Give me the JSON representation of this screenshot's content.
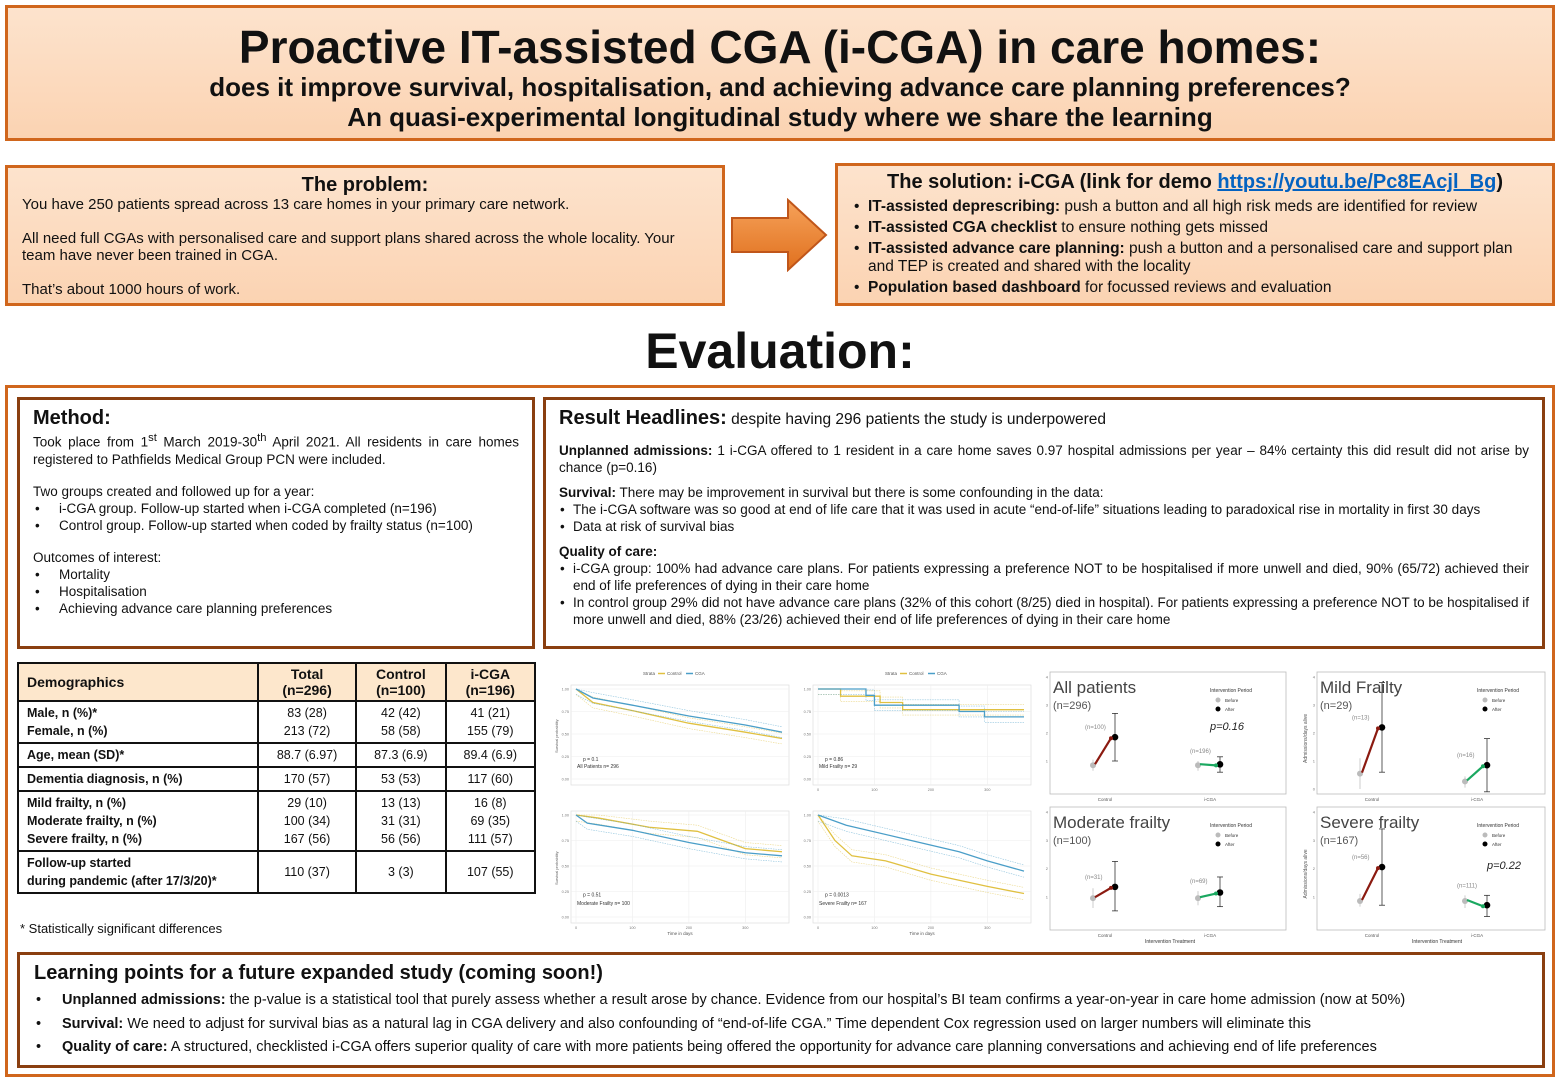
{
  "header": {
    "title": "Proactive IT-assisted CGA (i-CGA) in care homes:",
    "subtitle1": "does it improve survival, hospitalisation, and achieving advance care planning preferences?",
    "subtitle2": "An quasi-experimental longitudinal study where we share the learning"
  },
  "problem": {
    "title": "The problem:",
    "p1": "You have 250 patients spread across 13 care homes in your primary care network.",
    "p2": "All need full CGAs with personalised care and support plans shared across the whole locality. Your team have never been trained in CGA.",
    "p3": "That’s about 1000 hours of work."
  },
  "solution": {
    "title": "The solution: i-CGA (link for demo ",
    "link": "https://youtu.be/Pc8EAcjl_Bg",
    "title_end": ")",
    "items": [
      {
        "bold": "IT-assisted deprescribing:",
        "text": " push a button and all high risk meds are identified for review"
      },
      {
        "bold": "IT-assisted CGA checklist",
        "text": " to ensure nothing gets missed"
      },
      {
        "bold": "IT-assisted advance care planning:",
        "text": " push a button and a personalised care and support plan and TEP is created and shared with the locality"
      },
      {
        "bold": "Population based dashboard",
        "text": " for focussed reviews and evaluation"
      }
    ]
  },
  "evaluation_title": "Evaluation:",
  "method": {
    "title": "Method:",
    "p1a": "Took place from 1",
    "p1sup1": "st",
    "p1b": " March 2019-30",
    "p1sup2": "th",
    "p1c": " April 2021. All residents in care homes registered to Pathfields Medical Group PCN were included.",
    "p2": "Two groups created and followed up for a year:",
    "groups": [
      "i-CGA group. Follow-up started when i-CGA completed (n=196)",
      "Control group. Follow-up started when coded by frailty status (n=100)"
    ],
    "p3": "Outcomes of interest:",
    "outcomes": [
      "Mortality",
      "Hospitalisation",
      "Achieving advance care planning preferences"
    ]
  },
  "results": {
    "title": "Result Headlines:",
    "subtitle": " despite having 296 patients the study is underpowered",
    "admissions_label": "Unplanned admissions:",
    "admissions_text": " 1 i-CGA offered to 1 resident in a care home saves 0.97 hospital admissions per year – 84% certainty this did result did not arise by chance (p=0.16)",
    "survival_label": "Survival:",
    "survival_text": " There may be improvement in survival but there is some confounding in the data:",
    "survival_items": [
      "The i-CGA software was so good at end of life care that it was used in acute “end-of-life” situations leading to paradoxical rise in mortality in first 30 days",
      "Data at risk of survival bias"
    ],
    "quality_label": "Quality of care:",
    "quality_items": [
      "i-CGA group: 100% had advance care plans. For patients expressing a preference NOT to be hospitalised if more unwell and died, 90% (65/72) achieved their end of life preferences of dying in their care home",
      "In control group 29% did not have advance care plans (32% of this cohort (8/25) died in hospital). For patients expressing a preference NOT to be hospitalised if more unwell and died, 88% (23/26) achieved their end of life preferences of dying in their care home"
    ]
  },
  "demographics": {
    "headers": [
      "Demographics",
      "Total",
      "(n=296)",
      "Control",
      "(n=100)",
      "i-CGA",
      "(n=196)"
    ],
    "rows": [
      {
        "labels": [
          "Male, n (%)*",
          "Female, n (%)"
        ],
        "total": [
          "83 (28)",
          "213 (72)"
        ],
        "control": [
          "42 (42)",
          "58 (58)"
        ],
        "icga": [
          "41 (21)",
          "155 (79)"
        ]
      },
      {
        "labels": [
          "Age, mean (SD)*"
        ],
        "total": [
          "88.7 (6.97)"
        ],
        "control": [
          "87.3 (6.9)"
        ],
        "icga": [
          "89.4 (6.9)"
        ]
      },
      {
        "labels": [
          "Dementia diagnosis, n (%)"
        ],
        "total": [
          "170 (57)"
        ],
        "control": [
          "53 (53)"
        ],
        "icga": [
          "117 (60)"
        ]
      },
      {
        "labels": [
          "Mild frailty, n (%)",
          "Moderate frailty, n (%)",
          "Severe frailty, n (%)"
        ],
        "total": [
          "29 (10)",
          "100 (34)",
          "167 (56)"
        ],
        "control": [
          "13 (13)",
          "31 (31)",
          "56 (56)"
        ],
        "icga": [
          "16 (8)",
          "69 (35)",
          "111 (57)"
        ]
      },
      {
        "labels": [
          "Follow-up started",
          "during pandemic (after 17/3/20)*"
        ],
        "total": [
          "110 (37)"
        ],
        "control": [
          "3 (3)"
        ],
        "icga": [
          "107 (55)"
        ]
      }
    ],
    "footnote": "* Statistically significant differences"
  },
  "colors": {
    "border_orange": "#d0661c",
    "border_brown": "#8a3f10",
    "control": "#e0c040",
    "cga": "#4a9ec8",
    "worse": "#8b1a10",
    "better": "#1aa860"
  },
  "chart_data": [
    {
      "type": "line",
      "kind": "kaplan-meier",
      "legend": {
        "title": "Strata",
        "entries": [
          "Control",
          "CGA"
        ],
        "placement": "top"
      },
      "ylabel": "Survival probability",
      "xlabel": "",
      "ylim": [
        0,
        1
      ],
      "xlim": [
        0,
        365
      ],
      "yticks": [
        "0.00",
        "0.25",
        "0.50",
        "0.75",
        "1.00"
      ],
      "xticks": [],
      "p": "p = 0.1",
      "label": "All Patients n= 296",
      "series": [
        {
          "name": "Control",
          "points": [
            [
              0,
              1
            ],
            [
              30,
              0.85
            ],
            [
              100,
              0.76
            ],
            [
              200,
              0.62
            ],
            [
              300,
              0.52
            ],
            [
              365,
              0.45
            ]
          ]
        },
        {
          "name": "CGA",
          "points": [
            [
              0,
              1
            ],
            [
              30,
              0.9
            ],
            [
              100,
              0.82
            ],
            [
              200,
              0.7
            ],
            [
              300,
              0.6
            ],
            [
              365,
              0.52
            ]
          ]
        }
      ]
    },
    {
      "type": "line",
      "kind": "kaplan-meier",
      "legend": {
        "title": "Strata",
        "entries": [
          "Control",
          "CGA"
        ],
        "placement": "top"
      },
      "ylabel": "",
      "xlabel": "",
      "ylim": [
        0,
        1
      ],
      "xlim": [
        0,
        365
      ],
      "yticks": [
        "0.00",
        "0.25",
        "0.50",
        "0.75",
        "1.00"
      ],
      "xticks": [
        "0",
        "100",
        "200",
        "300"
      ],
      "p": "p = 0.86",
      "label": "Mild Frailty n= 29",
      "series": [
        {
          "name": "Control",
          "points": [
            [
              0,
              1
            ],
            [
              40,
              1
            ],
            [
              40,
              0.92
            ],
            [
              110,
              0.92
            ],
            [
              110,
              0.85
            ],
            [
              150,
              0.85
            ],
            [
              150,
              0.77
            ],
            [
              365,
              0.77
            ]
          ]
        },
        {
          "name": "CGA",
          "points": [
            [
              0,
              1
            ],
            [
              85,
              1
            ],
            [
              85,
              0.93
            ],
            [
              100,
              0.93
            ],
            [
              100,
              0.82
            ],
            [
              250,
              0.82
            ],
            [
              250,
              0.75
            ],
            [
              295,
              0.75
            ],
            [
              295,
              0.69
            ],
            [
              365,
              0.69
            ]
          ]
        }
      ]
    },
    {
      "type": "line",
      "kind": "kaplan-meier",
      "legend": null,
      "ylabel": "Survival probability",
      "xlabel": "Time in days",
      "ylim": [
        0,
        1
      ],
      "xlim": [
        0,
        365
      ],
      "yticks": [
        "0.00",
        "0.25",
        "0.50",
        "0.75",
        "1.00"
      ],
      "xticks": [
        "0",
        "100",
        "200",
        "300"
      ],
      "p": "p = 0.51",
      "label": "Moderate Frailty n= 100",
      "series": [
        {
          "name": "Control",
          "points": [
            [
              0,
              1
            ],
            [
              40,
              0.97
            ],
            [
              130,
              0.88
            ],
            [
              215,
              0.84
            ],
            [
              260,
              0.75
            ],
            [
              300,
              0.67
            ],
            [
              365,
              0.64
            ]
          ]
        },
        {
          "name": "CGA",
          "points": [
            [
              0,
              1
            ],
            [
              20,
              0.92
            ],
            [
              100,
              0.85
            ],
            [
              200,
              0.73
            ],
            [
              300,
              0.63
            ],
            [
              365,
              0.6
            ]
          ]
        }
      ]
    },
    {
      "type": "line",
      "kind": "kaplan-meier",
      "legend": null,
      "ylabel": "",
      "xlabel": "Time in days",
      "ylim": [
        0,
        1
      ],
      "xlim": [
        0,
        365
      ],
      "yticks": [
        "0.00",
        "0.25",
        "0.50",
        "0.75",
        "1.00"
      ],
      "xticks": [
        "0",
        "100",
        "200",
        "300"
      ],
      "p": "p = 0.0013",
      "label": "Severe Frailty n= 167",
      "series": [
        {
          "name": "Control",
          "points": [
            [
              0,
              1
            ],
            [
              30,
              0.75
            ],
            [
              60,
              0.6
            ],
            [
              120,
              0.55
            ],
            [
              200,
              0.42
            ],
            [
              300,
              0.3
            ],
            [
              365,
              0.23
            ]
          ]
        },
        {
          "name": "CGA",
          "points": [
            [
              0,
              1
            ],
            [
              50,
              0.9
            ],
            [
              150,
              0.77
            ],
            [
              250,
              0.64
            ],
            [
              300,
              0.55
            ],
            [
              365,
              0.45
            ]
          ]
        }
      ]
    },
    {
      "type": "scatter",
      "kind": "before-after",
      "title": "All patients",
      "n": "(n=296)",
      "legend": {
        "title": "Intervention Period",
        "entries": [
          "Before",
          "After"
        ],
        "placement": "top-right"
      },
      "ylabel": "Admissions/days alive",
      "xlabel": "",
      "ylim": [
        0,
        4
      ],
      "yticks": [
        "1",
        "2",
        "3",
        "4"
      ],
      "categories": [
        "Control",
        "i-CGA"
      ],
      "p": "p=0.16",
      "groups": [
        {
          "label": "(n=100)",
          "before": {
            "y": 0.85,
            "ci": [
              0.65,
              1.05
            ]
          },
          "after": {
            "y": 1.85,
            "ci": [
              1.0,
              2.7
            ]
          }
        },
        {
          "label": "(n=196)",
          "before": {
            "y": 0.85,
            "ci": [
              0.65,
              1.0
            ]
          },
          "after": {
            "y": 0.88,
            "ci": [
              0.6,
              1.15
            ]
          }
        }
      ]
    },
    {
      "type": "scatter",
      "kind": "before-after",
      "title": "Mild Frailty",
      "n": "(n=29)",
      "legend": {
        "title": "Intervention Period",
        "entries": [
          "Before",
          "After"
        ],
        "placement": "top-right"
      },
      "ylabel": "Admissions/days alive",
      "xlabel": "",
      "ylim": [
        0,
        4
      ],
      "yticks": [
        "0",
        "1",
        "2",
        "3",
        "4"
      ],
      "categories": [
        "Control",
        "i-CGA"
      ],
      "p": "",
      "groups": [
        {
          "label": "(n=13)",
          "before": {
            "y": 0.55,
            "ci": [
              0,
              1.1
            ]
          },
          "after": {
            "y": 2.2,
            "ci": [
              0.6,
              3.8
            ]
          }
        },
        {
          "label": "(n=16)",
          "before": {
            "y": 0.27,
            "ci": [
              0.05,
              0.45
            ]
          },
          "after": {
            "y": 0.85,
            "ci": [
              -0.1,
              1.8
            ]
          }
        }
      ]
    },
    {
      "type": "scatter",
      "kind": "before-after",
      "title": "Moderate frailty",
      "n": "(n=100)",
      "legend": {
        "title": "Intervention Period",
        "entries": [
          "Before",
          "After"
        ],
        "placement": "top-right"
      },
      "ylabel": "Admissions/days alive",
      "xlabel": "Intervention Treatment",
      "ylim": [
        0,
        4
      ],
      "yticks": [
        "1",
        "2",
        "3",
        "4"
      ],
      "categories": [
        "Control",
        "i-CGA"
      ],
      "p": "",
      "groups": [
        {
          "label": "(n=31)",
          "before": {
            "y": 0.95,
            "ci": [
              0.6,
              1.3
            ]
          },
          "after": {
            "y": 1.35,
            "ci": [
              0.5,
              2.25
            ]
          }
        },
        {
          "label": "(n=69)",
          "before": {
            "y": 0.95,
            "ci": [
              0.7,
              1.2
            ]
          },
          "after": {
            "y": 1.15,
            "ci": [
              0.65,
              1.7
            ]
          }
        }
      ]
    },
    {
      "type": "scatter",
      "kind": "before-after",
      "title": "Severe frailty",
      "n": "(n=167)",
      "legend": {
        "title": "Intervention Period",
        "entries": [
          "Before",
          "After"
        ],
        "placement": "top-right"
      },
      "ylabel": "Admissions/days alive",
      "xlabel": "Intervention Treatment",
      "ylim": [
        0,
        4
      ],
      "yticks": [
        "1",
        "2",
        "3",
        "4"
      ],
      "categories": [
        "Control",
        "i-CGA"
      ],
      "p": "p=0.22",
      "groups": [
        {
          "label": "(n=56)",
          "before": {
            "y": 0.85,
            "ci": [
              0.65,
              1.1
            ]
          },
          "after": {
            "y": 2.05,
            "ci": [
              0.7,
              3.4
            ]
          }
        },
        {
          "label": "(n=111)",
          "before": {
            "y": 0.85,
            "ci": [
              0.6,
              1.05
            ]
          },
          "after": {
            "y": 0.7,
            "ci": [
              0.3,
              1.05
            ]
          }
        }
      ]
    }
  ],
  "learning": {
    "title": "Learning points for a future expanded study (coming soon!)",
    "items": [
      {
        "bold": "Unplanned admissions:",
        "text": " the p-value is a statistical tool that purely assess whether a result arose by chance. Evidence from our hospital’s BI team confirms a year-on-year in care home admission (now at 50%)"
      },
      {
        "bold": "Survival:",
        "text": " We need to adjust for survival bias as a natural lag in CGA delivery and also confounding of “end-of-life CGA.” Time dependent Cox regression used on larger numbers will eliminate this"
      },
      {
        "bold": "Quality of care:",
        "text": " A structured, checklisted i-CGA offers superior quality of care with more patients being offered the opportunity for advance care planning conversations and achieving end of life preferences"
      }
    ]
  }
}
